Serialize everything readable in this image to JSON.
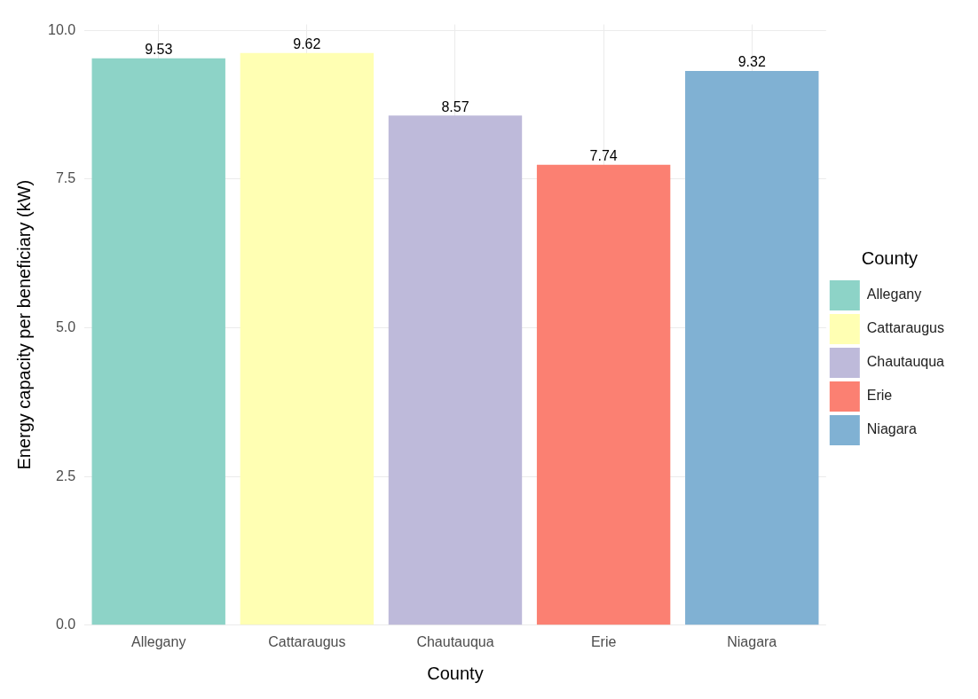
{
  "chart_data": {
    "type": "bar",
    "xlabel": "County",
    "ylabel": "Energy capacity per beneficiary (kW)",
    "legend_title": "County",
    "categories": [
      "Allegany",
      "Cattaraugus",
      "Chautauqua",
      "Erie",
      "Niagara"
    ],
    "series": [
      {
        "name": "Allegany",
        "color": "#8dd3c7",
        "values": [
          9.53,
          null,
          null,
          null,
          null
        ]
      },
      {
        "name": "Cattaraugus",
        "color": "#ffffb3",
        "values": [
          null,
          9.62,
          null,
          null,
          null
        ]
      },
      {
        "name": "Chautauqua",
        "color": "#bebada",
        "values": [
          null,
          null,
          8.57,
          null,
          null
        ]
      },
      {
        "name": "Erie",
        "color": "#fb8072",
        "values": [
          null,
          null,
          null,
          7.74,
          null
        ]
      },
      {
        "name": "Niagara",
        "color": "#80b1d3",
        "values": [
          null,
          null,
          null,
          null,
          9.32
        ]
      }
    ],
    "ylim": [
      0,
      10.1
    ],
    "yticks": [
      {
        "value": 0,
        "label": "0.0"
      },
      {
        "value": 2.5,
        "label": "2.5"
      },
      {
        "value": 5,
        "label": "5.0"
      },
      {
        "value": 7.5,
        "label": "7.5"
      },
      {
        "value": 10,
        "label": "10.0"
      }
    ],
    "grid": true,
    "legend": "right",
    "data_labels": true
  }
}
